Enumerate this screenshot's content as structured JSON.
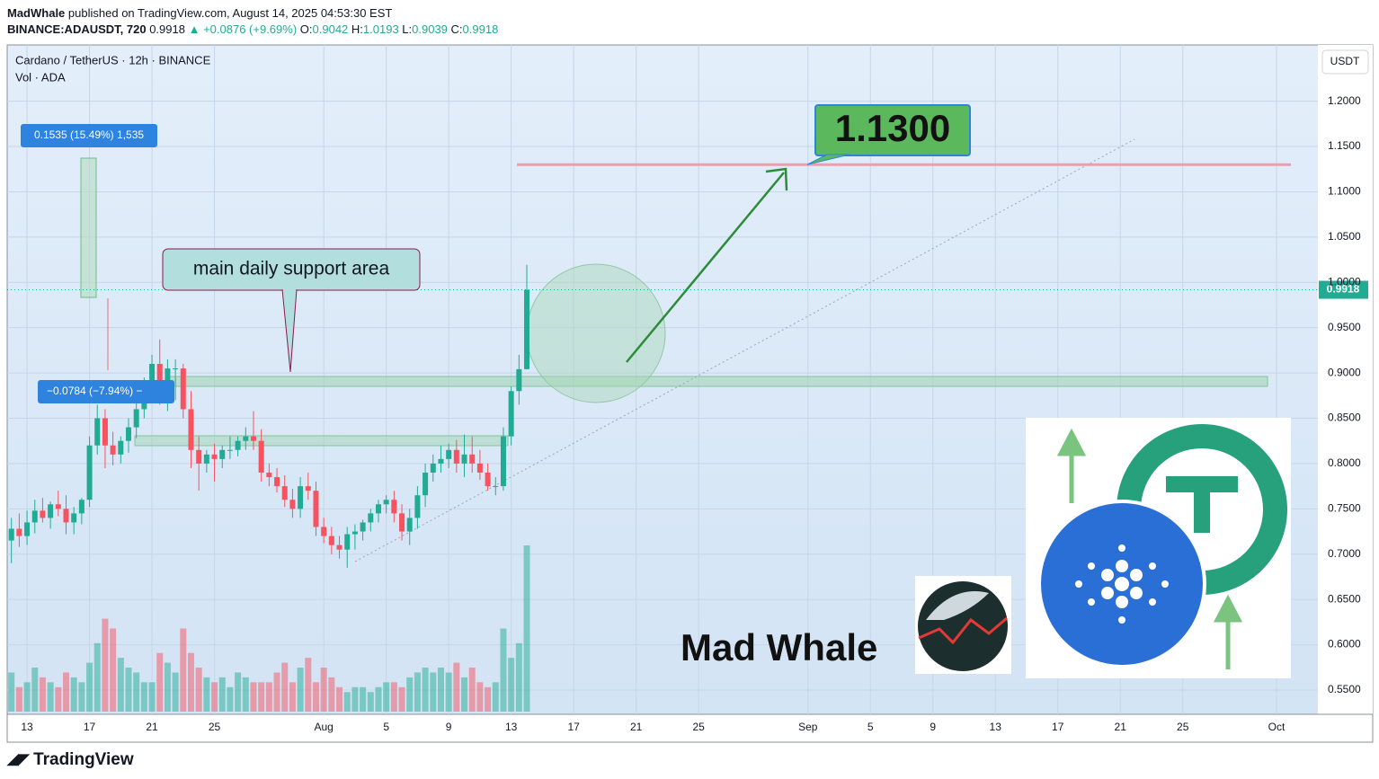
{
  "header": {
    "author": "MadWhale",
    "published": "published on TradingView.com, August 14, 2025 04:53:30 EST",
    "symbol": "BINANCE:ADAUSDT, 720",
    "last": "0.9918",
    "change": "▲ +0.0876 (+9.69%)",
    "ohlc": [
      {
        "key": "O:",
        "value": "0.9042"
      },
      {
        "key": "H:",
        "value": "1.0193"
      },
      {
        "key": "L:",
        "value": "0.9039"
      },
      {
        "key": "C:",
        "value": "0.9918"
      }
    ],
    "brand": "TradingView"
  },
  "chart_data": {
    "type": "candlestick",
    "title": "Cardano / TetherUS · 12h · BINANCE",
    "subtitle": "Vol · ADA",
    "currency": "USDT",
    "up_color": "#22ab94",
    "down_color": "#f7525f",
    "x": [
      -1,
      -0.5,
      0,
      0.5,
      1,
      1.5,
      2,
      2.5,
      3,
      3.5,
      4,
      4.5,
      5,
      5.5,
      6,
      6.5,
      7,
      7.5,
      8,
      8.5,
      9,
      9.5,
      10,
      10.5,
      11,
      11.5,
      12,
      12.5,
      13,
      13.5,
      14,
      14.5,
      15,
      15.5,
      16,
      16.5,
      17,
      17.5,
      18,
      18.5,
      19,
      19.5,
      20,
      20.5,
      21,
      21.5,
      22,
      22.5,
      23,
      23.5,
      24,
      24.5,
      25,
      25.5,
      26,
      26.5,
      27,
      27.5,
      28,
      28.5,
      29,
      29.5,
      30,
      30.5,
      31,
      31.5,
      32
    ],
    "open": [
      0.715,
      0.728,
      0.72,
      0.735,
      0.748,
      0.74,
      0.755,
      0.75,
      0.735,
      0.745,
      0.76,
      0.82,
      0.85,
      0.82,
      0.81,
      0.825,
      0.84,
      0.86,
      0.88,
      0.91,
      0.88,
      0.905,
      0.905,
      0.86,
      0.815,
      0.8,
      0.81,
      0.805,
      0.815,
      0.815,
      0.825,
      0.83,
      0.825,
      0.79,
      0.785,
      0.775,
      0.76,
      0.75,
      0.775,
      0.77,
      0.73,
      0.72,
      0.71,
      0.705,
      0.722,
      0.725,
      0.735,
      0.745,
      0.755,
      0.76,
      0.745,
      0.725,
      0.74,
      0.765,
      0.79,
      0.8,
      0.805,
      0.815,
      0.8,
      0.81,
      0.8,
      0.79,
      0.775,
      0.775,
      0.83,
      0.88,
      0.9042
    ],
    "high": [
      0.74,
      0.745,
      0.748,
      0.76,
      0.762,
      0.758,
      0.77,
      0.765,
      0.752,
      0.762,
      0.83,
      0.865,
      0.86,
      0.835,
      0.83,
      0.85,
      0.87,
      0.895,
      0.92,
      0.937,
      0.915,
      0.915,
      0.91,
      0.88,
      0.83,
      0.815,
      0.822,
      0.82,
      0.83,
      0.83,
      0.84,
      0.858,
      0.838,
      0.8,
      0.795,
      0.787,
      0.772,
      0.785,
      0.79,
      0.78,
      0.74,
      0.73,
      0.72,
      0.73,
      0.733,
      0.738,
      0.75,
      0.76,
      0.765,
      0.77,
      0.755,
      0.75,
      0.775,
      0.8,
      0.81,
      0.82,
      0.822,
      0.826,
      0.832,
      0.83,
      0.815,
      0.8,
      0.785,
      0.84,
      0.885,
      0.92,
      1.0193
    ],
    "low": [
      0.69,
      0.708,
      0.71,
      0.723,
      0.735,
      0.728,
      0.742,
      0.722,
      0.722,
      0.733,
      0.752,
      0.81,
      0.795,
      0.798,
      0.8,
      0.812,
      0.828,
      0.85,
      0.868,
      0.865,
      0.858,
      0.87,
      0.85,
      0.795,
      0.77,
      0.79,
      0.78,
      0.795,
      0.805,
      0.808,
      0.815,
      0.815,
      0.78,
      0.775,
      0.768,
      0.752,
      0.74,
      0.74,
      0.76,
      0.72,
      0.712,
      0.7,
      0.695,
      0.685,
      0.705,
      0.715,
      0.725,
      0.735,
      0.745,
      0.735,
      0.715,
      0.71,
      0.728,
      0.752,
      0.78,
      0.79,
      0.795,
      0.79,
      0.785,
      0.79,
      0.782,
      0.77,
      0.765,
      0.77,
      0.82,
      0.865,
      0.9039
    ],
    "close": [
      0.728,
      0.72,
      0.735,
      0.748,
      0.74,
      0.755,
      0.75,
      0.735,
      0.745,
      0.76,
      0.82,
      0.85,
      0.82,
      0.81,
      0.825,
      0.84,
      0.86,
      0.88,
      0.91,
      0.88,
      0.905,
      0.905,
      0.86,
      0.815,
      0.8,
      0.81,
      0.805,
      0.815,
      0.815,
      0.825,
      0.83,
      0.825,
      0.79,
      0.785,
      0.775,
      0.76,
      0.75,
      0.775,
      0.77,
      0.73,
      0.72,
      0.71,
      0.705,
      0.722,
      0.725,
      0.735,
      0.745,
      0.755,
      0.76,
      0.745,
      0.725,
      0.74,
      0.765,
      0.79,
      0.8,
      0.805,
      0.815,
      0.8,
      0.81,
      0.8,
      0.79,
      0.775,
      0.775,
      0.83,
      0.88,
      0.9042,
      0.9918
    ],
    "volume": [
      40,
      25,
      30,
      45,
      35,
      30,
      25,
      40,
      35,
      30,
      50,
      70,
      95,
      85,
      55,
      45,
      40,
      30,
      30,
      60,
      50,
      40,
      85,
      60,
      45,
      35,
      30,
      35,
      25,
      40,
      35,
      30,
      30,
      30,
      40,
      50,
      30,
      45,
      55,
      30,
      45,
      35,
      25,
      20,
      25,
      25,
      20,
      25,
      30,
      30,
      25,
      35,
      40,
      45,
      40,
      45,
      40,
      50,
      35,
      45,
      30,
      25,
      30,
      85,
      55,
      70,
      170
    ],
    "xlim": [
      -1.27,
      82.65
    ],
    "xticks": [
      {
        "value": 0,
        "label": "13"
      },
      {
        "value": 4,
        "label": "17"
      },
      {
        "value": 8,
        "label": "21"
      },
      {
        "value": 12,
        "label": "25"
      },
      {
        "value": 19,
        "label": "Aug"
      },
      {
        "value": 23,
        "label": "5"
      },
      {
        "value": 27,
        "label": "9"
      },
      {
        "value": 31,
        "label": "13"
      },
      {
        "value": 35,
        "label": "17"
      },
      {
        "value": 39,
        "label": "21"
      },
      {
        "value": 43,
        "label": "25"
      },
      {
        "value": 50,
        "label": "Sep"
      },
      {
        "value": 54,
        "label": "5"
      },
      {
        "value": 58,
        "label": "9"
      },
      {
        "value": 62,
        "label": "13"
      },
      {
        "value": 66,
        "label": "17"
      },
      {
        "value": 70,
        "label": "21"
      },
      {
        "value": 74,
        "label": "25"
      },
      {
        "value": 80,
        "label": "Oct"
      }
    ],
    "ylim": [
      0.5232,
      1.2621
    ],
    "yticks": [
      {
        "value": 0.55,
        "label": "0.5500"
      },
      {
        "value": 0.6,
        "label": "0.6000"
      },
      {
        "value": 0.65,
        "label": "0.6500"
      },
      {
        "value": 0.7,
        "label": "0.7000"
      },
      {
        "value": 0.75,
        "label": "0.7500"
      },
      {
        "value": 0.8,
        "label": "0.8000"
      },
      {
        "value": 0.85,
        "label": "0.8500"
      },
      {
        "value": 0.9,
        "label": "0.9000"
      },
      {
        "value": 0.95,
        "label": "0.9500"
      },
      {
        "value": 1.0,
        "label": "1.0000"
      },
      {
        "value": 1.05,
        "label": "1.0500"
      },
      {
        "value": 1.1,
        "label": "1.1000"
      },
      {
        "value": 1.15,
        "label": "1.1500"
      },
      {
        "value": 1.2,
        "label": "1.2000"
      }
    ],
    "grid": true,
    "last_price": 0.9918,
    "target": {
      "value": 1.13,
      "label": "1.1300"
    },
    "annotation": "main daily support area",
    "measure_up": "0.1535 (15.49%) 1,535",
    "measure_down": "−0.0784 (−7.94%) −",
    "watermark": "Mad Whale"
  }
}
